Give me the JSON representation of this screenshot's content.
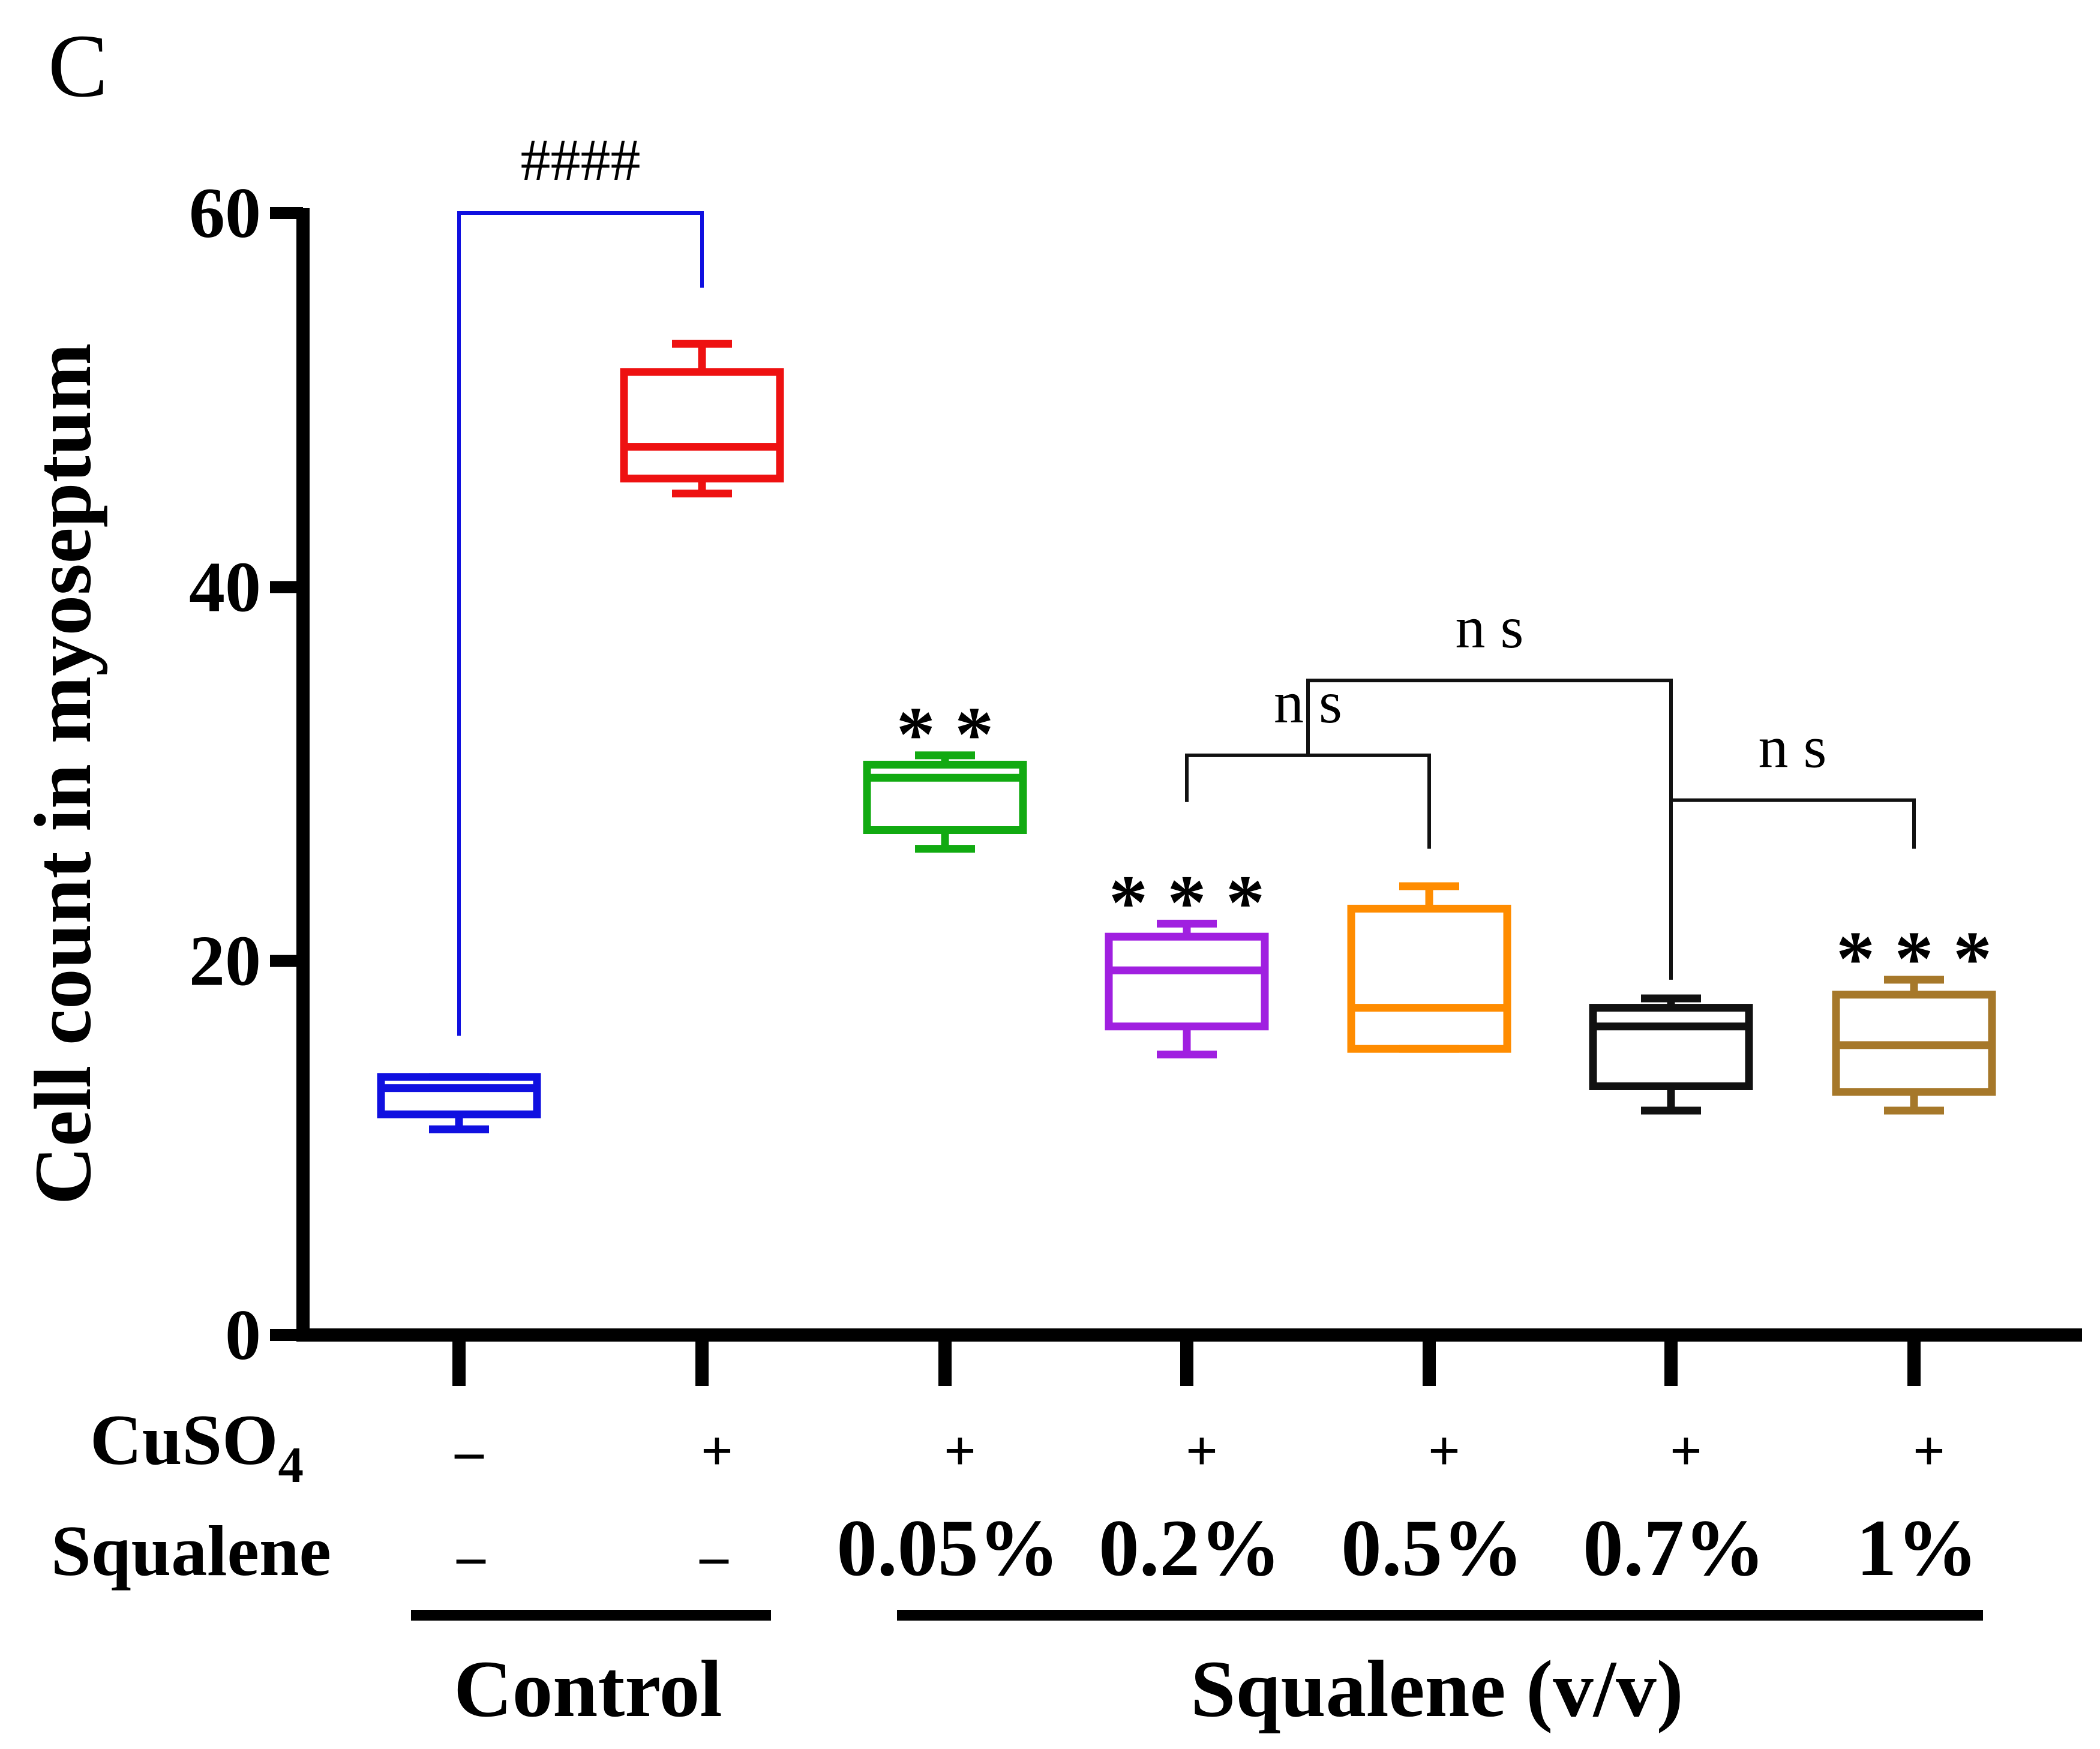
{
  "panel_label": "C",
  "chart_data": {
    "type": "box",
    "ylabel": "Cell count in myoseptum",
    "ylim": [
      0,
      60
    ],
    "yticks": [
      0,
      20,
      40,
      60
    ],
    "groups": [
      {
        "cuso4": "–",
        "squalene": "–",
        "color": "#1010e0",
        "min": 11,
        "q1": 11.8,
        "median": 13.2,
        "q3": 13.8,
        "max": 13.8
      },
      {
        "cuso4": "+",
        "squalene": "–",
        "color": "#ee1111",
        "min": 45,
        "q1": 45.8,
        "median": 47.5,
        "q3": 51.5,
        "max": 53
      },
      {
        "cuso4": "+",
        "squalene": "0.05%",
        "color": "#11aa11",
        "min": 26,
        "q1": 27,
        "median": 29.8,
        "q3": 30.5,
        "max": 31
      },
      {
        "cuso4": "+",
        "squalene": "0.2%",
        "color": "#a020e0",
        "min": 15,
        "q1": 16.5,
        "median": 19.5,
        "q3": 21.3,
        "max": 22
      },
      {
        "cuso4": "+",
        "squalene": "0.5%",
        "color": "#ff8c00",
        "min": 15.3,
        "q1": 15.3,
        "median": 17.5,
        "q3": 22.8,
        "max": 24
      },
      {
        "cuso4": "+",
        "squalene": "0.7%",
        "color": "#111111",
        "min": 12,
        "q1": 13.3,
        "median": 16.5,
        "q3": 17.5,
        "max": 18
      },
      {
        "cuso4": "+",
        "squalene": "1%",
        "color": "#a6782a",
        "min": 12,
        "q1": 13,
        "median": 15.5,
        "q3": 18.2,
        "max": 19
      }
    ],
    "significance_marks": [
      {
        "group": 2,
        "text": "* *",
        "y": 32.5
      },
      {
        "group": 3,
        "text": "* * *",
        "y": 23.5
      },
      {
        "group": 6,
        "text": "* * *",
        "y": 20.5
      }
    ],
    "brackets": [
      {
        "from": 0,
        "to": 1,
        "top": 60,
        "left_end": 16,
        "right_end": 56,
        "label": "####",
        "color": "#1010e0"
      },
      {
        "from": 3,
        "to": 4,
        "top": 31,
        "left_end": 28.5,
        "right_end": 26,
        "label": "n s",
        "color": "#111111"
      },
      {
        "from": 3.5,
        "to": 5,
        "top": 35,
        "left_end": 31,
        "right_end": 19,
        "label": "n s",
        "color": "#111111"
      },
      {
        "from": 5,
        "to": 6,
        "top": 28.6,
        "left_end": 28.6,
        "right_end": 26,
        "label": "n s",
        "color": "#111111"
      }
    ],
    "row_labels": {
      "cuso4_main": "CuSO",
      "cuso4_sub": "4",
      "squalene": "Squalene"
    },
    "group_labels": [
      {
        "text": "Control",
        "from": 0,
        "to": 1
      },
      {
        "text": "Squalene (v/v)",
        "from": 2,
        "to": 6
      }
    ]
  }
}
